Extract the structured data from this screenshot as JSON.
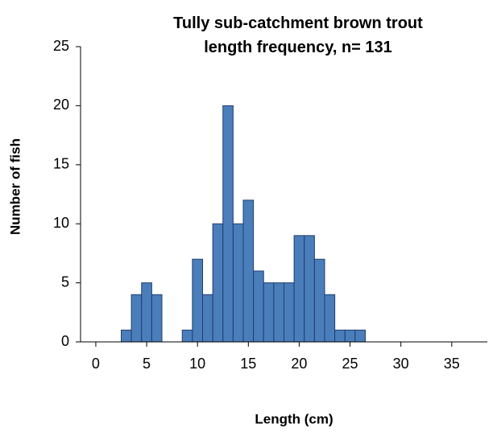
{
  "chart_data": {
    "type": "histogram",
    "title": "Tully sub-catchment brown trout length frequency, n= 131",
    "x_label": "Length (cm)",
    "y_label": "Number of fish",
    "bins": [
      2.5,
      3.5,
      4.5,
      5.5,
      6.5,
      7.5,
      8.5,
      9.5,
      10.5,
      11.5,
      12.5,
      13.5,
      14.5,
      15.5,
      16.5,
      17.5,
      18.5,
      19.5,
      20.5,
      21.5,
      22.5,
      23.5,
      24.5,
      25.5,
      26.5
    ],
    "values": [
      1,
      4,
      5,
      4,
      0,
      0,
      1,
      7,
      4,
      10,
      20,
      10,
      12,
      6,
      5,
      5,
      5,
      9,
      9,
      7,
      4,
      1,
      1,
      1
    ],
    "color": "#4a7ebb",
    "xlim": [
      -1.5,
      38.5
    ],
    "xticks": [
      0,
      5,
      10,
      15,
      20,
      25,
      30,
      35
    ],
    "ylim": [
      0,
      25
    ],
    "yticks": [
      0,
      5,
      10,
      15,
      20,
      25
    ]
  }
}
